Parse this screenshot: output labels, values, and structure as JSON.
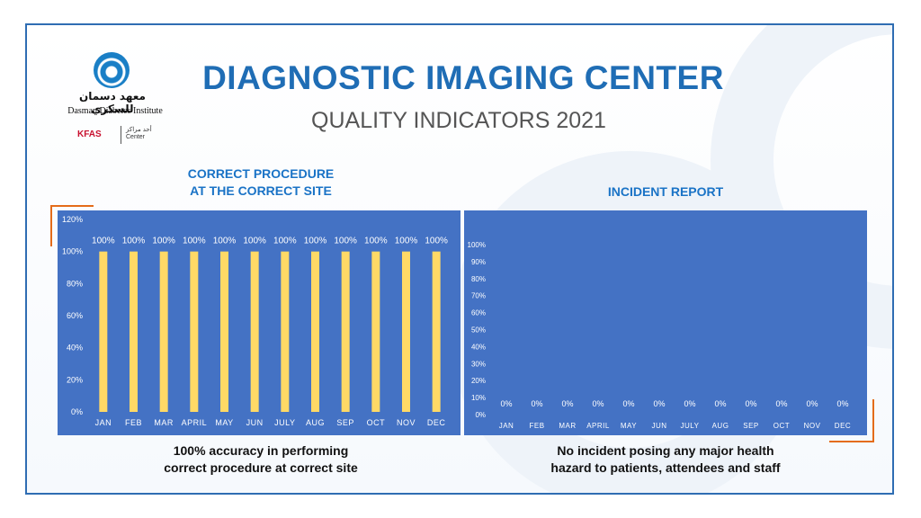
{
  "header": {
    "title": "DIAGNOSTIC IMAGING CENTER",
    "subtitle": "QUALITY INDICATORS 2021"
  },
  "logo": {
    "arabic_name": "معهد دسمان للسكري",
    "english_name": "Dasman Diabetes Institute",
    "partner": "KFAS",
    "partner_center_ar": "أحد مراكز",
    "partner_center_en": "Center"
  },
  "colors": {
    "accent": "#1f6db5",
    "panel": "#4472c4",
    "bar": "#ffd966",
    "corner": "#e46c1a"
  },
  "captions": {
    "left": [
      "100% accuracy in performing",
      "correct procedure at correct site"
    ],
    "right": [
      "No incident posing any major health",
      "hazard to patients, attendees and staff"
    ]
  },
  "chart_data": [
    {
      "type": "bar",
      "title": [
        "CORRECT PROCEDURE",
        "AT THE CORRECT SITE"
      ],
      "categories": [
        "JAN",
        "FEB",
        "MAR",
        "APRIL",
        "MAY",
        "JUN",
        "JULY",
        "AUG",
        "SEP",
        "OCT",
        "NOV",
        "DEC"
      ],
      "values": [
        100,
        100,
        100,
        100,
        100,
        100,
        100,
        100,
        100,
        100,
        100,
        100
      ],
      "data_labels": [
        "100%",
        "100%",
        "100%",
        "100%",
        "100%",
        "100%",
        "100%",
        "100%",
        "100%",
        "100%",
        "100%",
        "100%"
      ],
      "yticks": [
        "0%",
        "20%",
        "40%",
        "60%",
        "80%",
        "100%",
        "120%"
      ],
      "ylim": [
        0,
        120
      ],
      "ytick_step": 20,
      "grid": false,
      "xlabel": "",
      "ylabel": ""
    },
    {
      "type": "bar",
      "title": [
        "INCIDENT REPORT"
      ],
      "categories": [
        "JAN",
        "FEB",
        "MAR",
        "APRIL",
        "MAY",
        "JUN",
        "JULY",
        "AUG",
        "SEP",
        "OCT",
        "NOV",
        "DEC"
      ],
      "values": [
        0,
        0,
        0,
        0,
        0,
        0,
        0,
        0,
        0,
        0,
        0,
        0
      ],
      "data_labels": [
        "0%",
        "0%",
        "0%",
        "0%",
        "0%",
        "0%",
        "0%",
        "0%",
        "0%",
        "0%",
        "0%",
        "0%"
      ],
      "yticks": [
        "0%",
        "10%",
        "20%",
        "30%",
        "40%",
        "50%",
        "60%",
        "70%",
        "80%",
        "90%",
        "100%"
      ],
      "ylim": [
        0,
        100
      ],
      "ytick_step": 10,
      "grid": false,
      "xlabel": "",
      "ylabel": ""
    }
  ]
}
